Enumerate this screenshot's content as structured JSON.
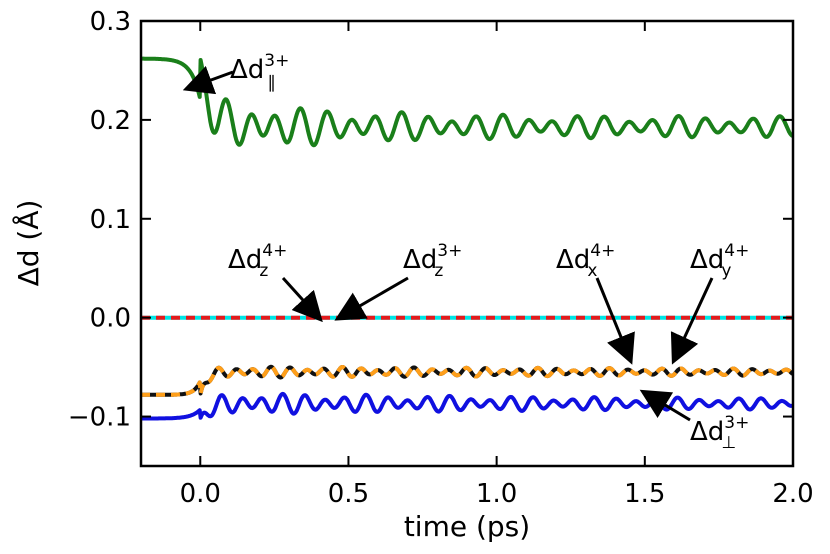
{
  "chart_data": {
    "type": "line",
    "title": "",
    "xlabel": "time (ps)",
    "ylabel": "Δd  (Å)",
    "xlim": [
      -0.2,
      2.0
    ],
    "ylim": [
      -0.15,
      0.3
    ],
    "xticks": [
      0.0,
      0.5,
      1.0,
      1.5,
      2.0
    ],
    "xtick_labels": [
      "0.0",
      "0.5",
      "1.0",
      "1.5",
      "2.0"
    ],
    "yticks": [
      -0.1,
      0.0,
      0.1,
      0.2,
      0.3
    ],
    "ytick_labels": [
      "−0.1",
      "0.0",
      "0.1",
      "0.2",
      "0.3"
    ],
    "series": [
      {
        "name": "Δd∥ 3+",
        "color": "#1a7f1a",
        "style": "solid",
        "baseline": 0.262,
        "final": 0.193,
        "osc_amp": 0.03,
        "osc_decay": 0.45,
        "osc_period": 0.085,
        "rise": 0.03
      },
      {
        "name": "Δdz 4+",
        "color": "#00e5e5",
        "style": "solid",
        "baseline": 0.0,
        "final": 0.0,
        "osc_amp": 0.0,
        "osc_decay": 1.0,
        "osc_period": 0.1,
        "rise": 0.03
      },
      {
        "name": "Δdz 3+",
        "color": "#e41a1c",
        "style": "dashed",
        "baseline": 0.0,
        "final": 0.0,
        "osc_amp": 0.0,
        "osc_decay": 1.0,
        "osc_period": 0.1,
        "rise": 0.03
      },
      {
        "name": "Δdx 4+",
        "color": "#111111",
        "style": "solid",
        "baseline": -0.078,
        "final": -0.055,
        "osc_amp": 0.006,
        "osc_decay": 2.0,
        "osc_period": 0.06,
        "rise": 0.02
      },
      {
        "name": "Δdy 4+",
        "color": "#ff9f1a",
        "style": "dashed",
        "baseline": -0.078,
        "final": -0.055,
        "osc_amp": 0.006,
        "osc_decay": 2.0,
        "osc_period": 0.06,
        "rise": 0.02
      },
      {
        "name": "Δd⊥ 3+",
        "color": "#1010e0",
        "style": "solid",
        "baseline": -0.102,
        "final": -0.087,
        "osc_amp": 0.012,
        "osc_decay": 1.2,
        "osc_period": 0.07,
        "rise": 0.03
      }
    ],
    "annotations": [
      {
        "base": "Δd",
        "sup": "3+",
        "sub": "∥",
        "target": [
          -0.04,
          0.232
        ]
      },
      {
        "base": "Δd",
        "sup": "4+",
        "sub": "z",
        "target": [
          0.4,
          0.0
        ]
      },
      {
        "base": "Δd",
        "sup": "3+",
        "sub": "z",
        "target": [
          0.47,
          0.0
        ]
      },
      {
        "base": "Δd",
        "sup": "4+",
        "sub": "x",
        "target": [
          1.45,
          -0.042
        ]
      },
      {
        "base": "Δd",
        "sup": "4+",
        "sub": "y",
        "target": [
          1.6,
          -0.042
        ]
      },
      {
        "base": "Δd",
        "sup": "3+",
        "sub": "⊥",
        "target": [
          1.5,
          -0.076
        ]
      }
    ]
  }
}
